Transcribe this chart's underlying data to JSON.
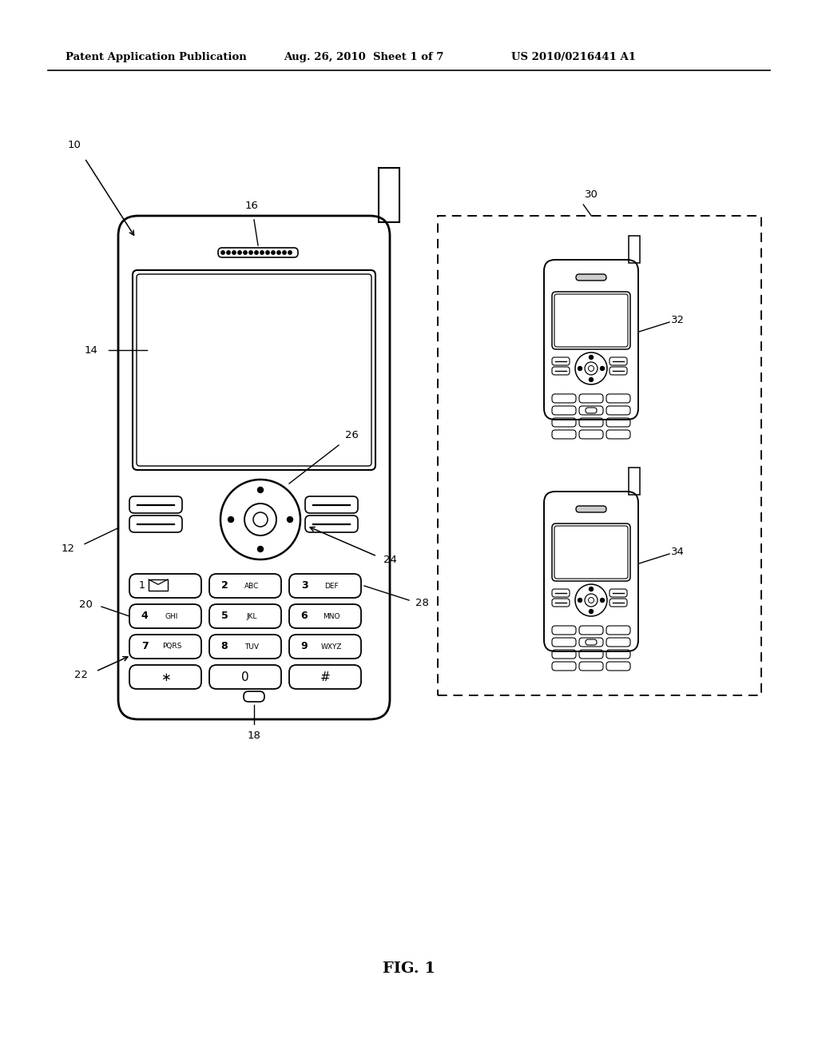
{
  "header_left": "Patent Application Publication",
  "header_mid": "Aug. 26, 2010  Sheet 1 of 7",
  "header_right": "US 2010/0216441 A1",
  "fig_label": "FIG. 1",
  "bg_color": "#ffffff",
  "line_color": "#000000"
}
